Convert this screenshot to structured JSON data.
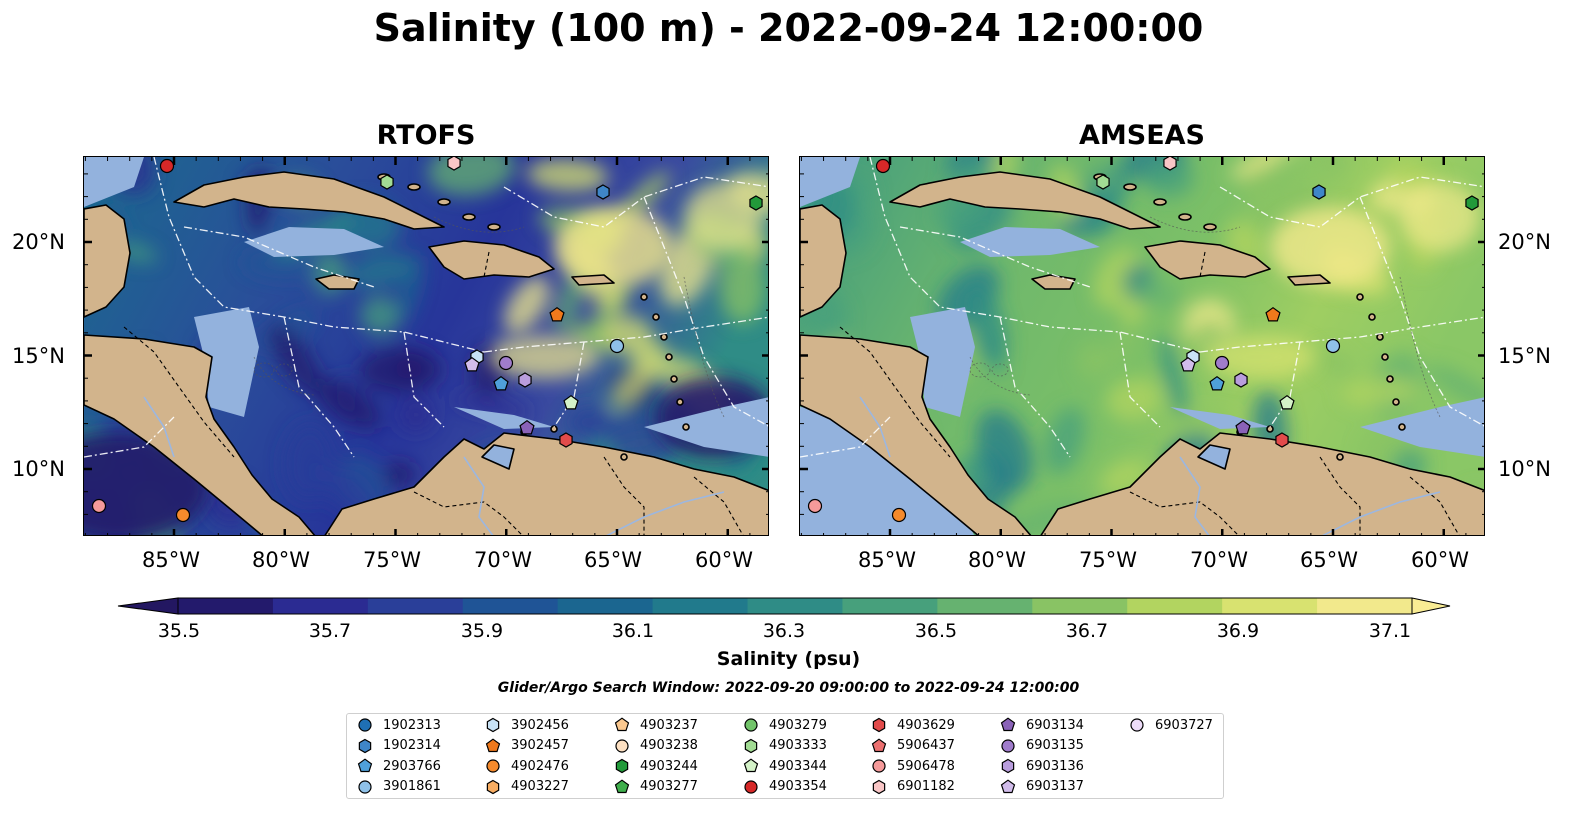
{
  "title": "Salinity (100 m) - 2022-09-24 12:00:00",
  "panels": [
    {
      "title": "RTOFS",
      "field": "rtofs"
    },
    {
      "title": "AMSEAS",
      "field": "amseas"
    }
  ],
  "lat_ticks": [
    "20°N",
    "15°N",
    "10°N"
  ],
  "lon_ticks": [
    "85°W",
    "80°W",
    "75°W",
    "70°W",
    "65°W",
    "60°W"
  ],
  "colorbar": {
    "label": "Salinity (psu)",
    "ticks": [
      "35.5",
      "35.7",
      "35.9",
      "36.1",
      "36.3",
      "36.5",
      "36.7",
      "36.9",
      "37.1"
    ],
    "colors": [
      "#231a6c",
      "#2b2b92",
      "#2a3f99",
      "#1f5496",
      "#1b6690",
      "#217a8c",
      "#2f8c86",
      "#47a07c",
      "#66b270",
      "#89c364",
      "#b2d460",
      "#d8e270",
      "#f2e98c"
    ],
    "range": [
      35.4,
      37.2
    ]
  },
  "window_text": "Glider/Argo Search Window: 2022-09-20 09:00:00 to 2022-09-24 12:00:00",
  "legend": [
    {
      "id": "1902313",
      "marker": "circle",
      "color": "#1f6fb4"
    },
    {
      "id": "1902314",
      "marker": "hexagon",
      "color": "#3f86c8"
    },
    {
      "id": "2903766",
      "marker": "pentagon",
      "color": "#4fa0da"
    },
    {
      "id": "3901861",
      "marker": "circle",
      "color": "#8fc1e8"
    },
    {
      "id": "3902456",
      "marker": "hexagon",
      "color": "#c8e2f5"
    },
    {
      "id": "3902457",
      "marker": "pentagon",
      "color": "#f0791c"
    },
    {
      "id": "4902476",
      "marker": "circle",
      "color": "#f58a2c"
    },
    {
      "id": "4903227",
      "marker": "hexagon",
      "color": "#f8ad62"
    },
    {
      "id": "4903237",
      "marker": "pentagon",
      "color": "#fbc88f"
    },
    {
      "id": "4903238",
      "marker": "circle",
      "color": "#fde0c2"
    },
    {
      "id": "4903244",
      "marker": "hexagon",
      "color": "#229a3a"
    },
    {
      "id": "4903277",
      "marker": "pentagon",
      "color": "#3fae4c"
    },
    {
      "id": "4903279",
      "marker": "circle",
      "color": "#72c46a"
    },
    {
      "id": "4903333",
      "marker": "hexagon",
      "color": "#a2dc94"
    },
    {
      "id": "4903344",
      "marker": "pentagon",
      "color": "#d4f2c8"
    },
    {
      "id": "4903354",
      "marker": "circle",
      "color": "#d62828"
    },
    {
      "id": "4903629",
      "marker": "hexagon",
      "color": "#e24b4b"
    },
    {
      "id": "5906437",
      "marker": "pentagon",
      "color": "#ec7070"
    },
    {
      "id": "5906478",
      "marker": "circle",
      "color": "#f59a9a"
    },
    {
      "id": "6901182",
      "marker": "hexagon",
      "color": "#f9c6c6"
    },
    {
      "id": "6903134",
      "marker": "pentagon",
      "color": "#8a62b8"
    },
    {
      "id": "6903135",
      "marker": "circle",
      "color": "#a07ccc"
    },
    {
      "id": "6903136",
      "marker": "hexagon",
      "color": "#b99ddd"
    },
    {
      "id": "6903137",
      "marker": "pentagon",
      "color": "#d2bdeb"
    },
    {
      "id": "6903727",
      "marker": "circle",
      "color": "#eddcf8"
    }
  ],
  "map_colors": {
    "land": "#d2b48c",
    "shallow": "#93b2dd",
    "coast": "#000000"
  }
}
